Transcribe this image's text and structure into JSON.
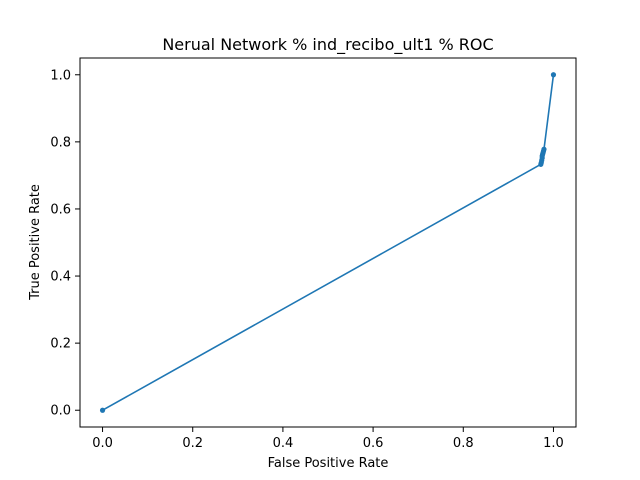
{
  "chart_data": {
    "type": "line",
    "title": "Nerual Network % ind_recibo_ult1 % ROC",
    "xlabel": "False Positive Rate",
    "ylabel": "True Positive Rate",
    "xlim": [
      -0.05,
      1.05
    ],
    "ylim": [
      -0.05,
      1.05
    ],
    "xticks": [
      "0.0",
      "0.2",
      "0.4",
      "0.6",
      "0.8",
      "1.0"
    ],
    "yticks": [
      "0.0",
      "0.2",
      "0.4",
      "0.6",
      "0.8",
      "1.0"
    ],
    "grid": false,
    "legend": "none",
    "series": [
      {
        "color": "#1f77b4",
        "marker": "circle",
        "x": [
          0.0,
          0.972,
          0.973,
          0.974,
          0.975,
          0.975,
          0.976,
          0.977,
          0.978,
          0.979,
          1.0
        ],
        "y": [
          0.0,
          0.733,
          0.738,
          0.745,
          0.752,
          0.758,
          0.763,
          0.768,
          0.773,
          0.778,
          1.0
        ]
      }
    ]
  }
}
